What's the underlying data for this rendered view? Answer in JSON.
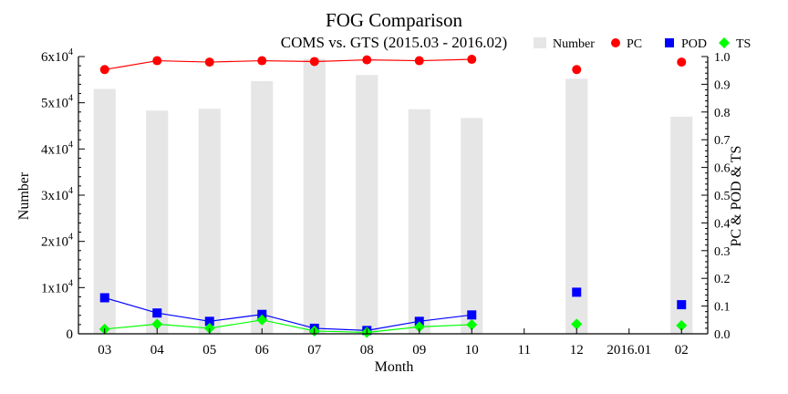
{
  "chart_data": {
    "type": "bar",
    "title": "FOG Comparison",
    "subtitle": "COMS vs. GTS (2015.03 - 2016.02)",
    "xlabel": "Month",
    "ylabel_left": "Number",
    "ylabel_right": "PC & POD & TS",
    "categories": [
      "03",
      "04",
      "05",
      "06",
      "07",
      "08",
      "09",
      "10",
      "11",
      "12",
      "2016.01",
      "02"
    ],
    "ylim_left": [
      0,
      60000
    ],
    "ylim_right": [
      0,
      1.0
    ],
    "yticks_left": [
      {
        "value": 0,
        "base": "0",
        "exp": ""
      },
      {
        "value": 10000,
        "base": "1x10",
        "exp": "4"
      },
      {
        "value": 20000,
        "base": "2x10",
        "exp": "4"
      },
      {
        "value": 30000,
        "base": "3x10",
        "exp": "4"
      },
      {
        "value": 40000,
        "base": "4x10",
        "exp": "4"
      },
      {
        "value": 50000,
        "base": "5x10",
        "exp": "4"
      },
      {
        "value": 60000,
        "base": "6x10",
        "exp": "4"
      }
    ],
    "yticks_right": [
      "0.0",
      "0.1",
      "0.2",
      "0.3",
      "0.4",
      "0.5",
      "0.6",
      "0.7",
      "0.8",
      "0.9",
      "1.0"
    ],
    "legend_position": "top-right",
    "series": [
      {
        "name": "Number",
        "kind": "bar",
        "axis": "left",
        "color": "#e6e6e6",
        "values": [
          53000,
          48300,
          48700,
          54700,
          59500,
          56000,
          48600,
          46700,
          null,
          55200,
          null,
          47000
        ]
      },
      {
        "name": "PC",
        "kind": "line",
        "axis": "right",
        "color": "#ff0000",
        "marker": "circle",
        "values": [
          0.953,
          0.985,
          0.98,
          0.985,
          0.982,
          0.988,
          0.985,
          0.99,
          null,
          0.953,
          null,
          0.98
        ]
      },
      {
        "name": "POD",
        "kind": "line",
        "axis": "right",
        "color": "#0000ff",
        "marker": "square",
        "values": [
          0.13,
          0.075,
          0.045,
          0.07,
          0.02,
          0.012,
          0.045,
          0.068,
          null,
          0.15,
          null,
          0.105
        ]
      },
      {
        "name": "TS",
        "kind": "line",
        "axis": "right",
        "color": "#00ff00",
        "marker": "diamond",
        "values": [
          0.017,
          0.035,
          0.02,
          0.05,
          0.01,
          0.005,
          0.025,
          0.033,
          null,
          0.035,
          null,
          0.03
        ]
      }
    ]
  }
}
